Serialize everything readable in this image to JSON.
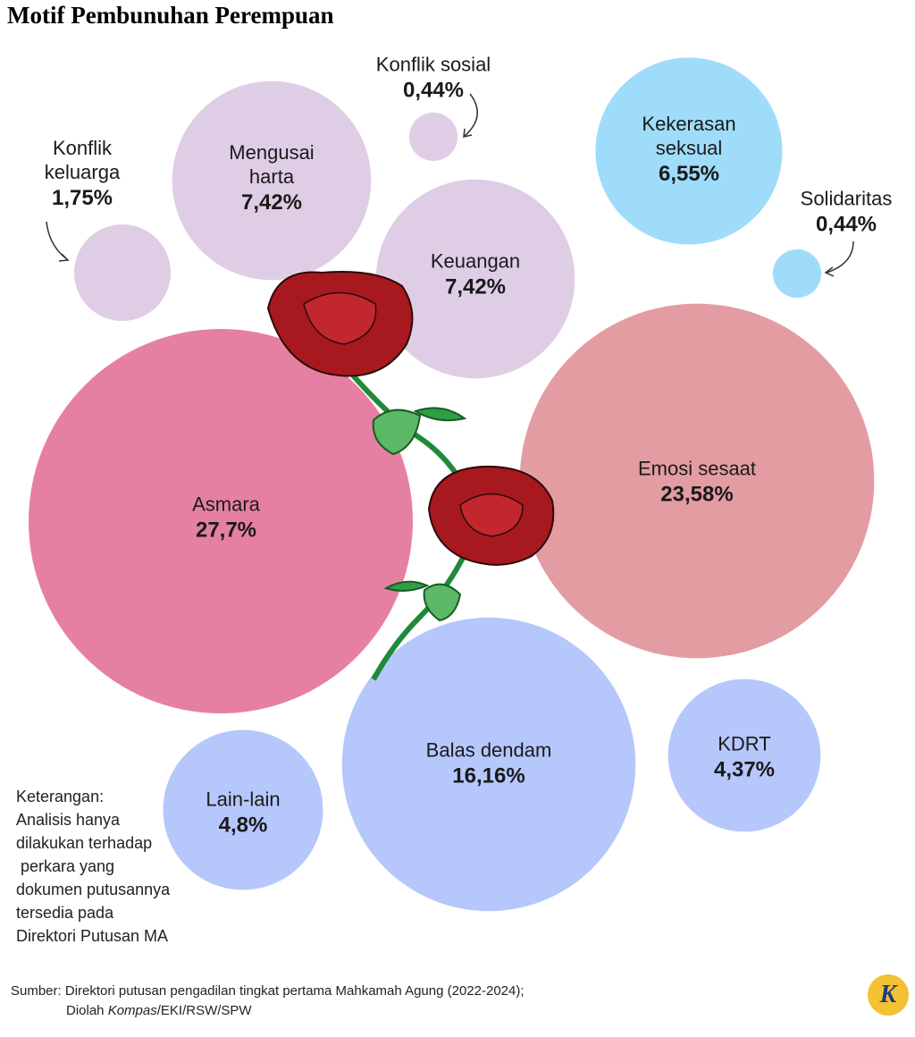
{
  "chart_data": {
    "type": "bubble",
    "title": "Motif Pembunuhan Perempuan",
    "categories": [
      "Asmara",
      "Emosi sesaat",
      "Balas dendam",
      "Mengusai harta",
      "Keuangan",
      "Kekerasan seksual",
      "Lain-lain",
      "KDRT",
      "Konflik keluarga",
      "Konflik sosial",
      "Solidaritas"
    ],
    "values": [
      27.7,
      23.58,
      16.16,
      7.42,
      7.42,
      6.55,
      4.8,
      4.37,
      1.75,
      0.44,
      0.44
    ],
    "value_labels": [
      "27,7%",
      "23,58%",
      "16,16%",
      "7,42%",
      "7,42%",
      "6,55%",
      "4,8%",
      "4,37%",
      "1,75%",
      "0,44%",
      "0,44%"
    ],
    "colors": [
      "#e680a2",
      "#e49ca3",
      "#b5c7fb",
      "#dfcde6",
      "#dfcde6",
      "#9fdcfa",
      "#b5c7fb",
      "#b5c7fb",
      "#dfcde6",
      "#dfcde6",
      "#9fdcfa"
    ],
    "note": [
      "Keterangan:",
      "Analisis hanya",
      "dilakukan terhadap",
      " perkara yang",
      "dokumen putusannya",
      "tersedia pada",
      "Direktori Putusan MA"
    ],
    "source": [
      "Sumber: Direktori putusan pengadilan tingkat pertama Mahkamah Agung (2022-2024);",
      "Diolah ",
      "Kompas",
      "/EKI/RSW/SPW"
    ],
    "logo": "K"
  }
}
